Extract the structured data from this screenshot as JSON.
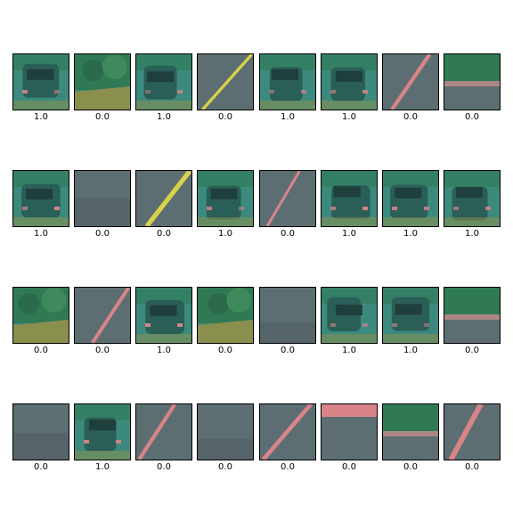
{
  "palette": {
    "teal": "#3c8a7e",
    "teal_dark": "#2a5f57",
    "slate": "#5d6e72",
    "olive": "#8a8f4e",
    "pink": "#d98488",
    "yellow": "#d6d24a",
    "green": "#2f7a55"
  },
  "thumbnails": [
    {
      "label": "1.0",
      "scene": "car"
    },
    {
      "label": "0.0",
      "scene": "vegetation"
    },
    {
      "label": "1.0",
      "scene": "car"
    },
    {
      "label": "0.0",
      "scene": "road-line"
    },
    {
      "label": "1.0",
      "scene": "car"
    },
    {
      "label": "1.0",
      "scene": "car"
    },
    {
      "label": "0.0",
      "scene": "road-line"
    },
    {
      "label": "0.0",
      "scene": "guardrail"
    },
    {
      "label": "1.0",
      "scene": "car"
    },
    {
      "label": "0.0",
      "scene": "road"
    },
    {
      "label": "0.0",
      "scene": "road-line"
    },
    {
      "label": "1.0",
      "scene": "car"
    },
    {
      "label": "0.0",
      "scene": "road-line"
    },
    {
      "label": "1.0",
      "scene": "car"
    },
    {
      "label": "1.0",
      "scene": "car"
    },
    {
      "label": "1.0",
      "scene": "car"
    },
    {
      "label": "0.0",
      "scene": "vegetation"
    },
    {
      "label": "0.0",
      "scene": "road-line"
    },
    {
      "label": "1.0",
      "scene": "car"
    },
    {
      "label": "0.0",
      "scene": "vegetation"
    },
    {
      "label": "0.0",
      "scene": "road"
    },
    {
      "label": "1.0",
      "scene": "car"
    },
    {
      "label": "1.0",
      "scene": "car"
    },
    {
      "label": "0.0",
      "scene": "guardrail"
    },
    {
      "label": "0.0",
      "scene": "road"
    },
    {
      "label": "1.0",
      "scene": "car"
    },
    {
      "label": "0.0",
      "scene": "road-line"
    },
    {
      "label": "0.0",
      "scene": "road"
    },
    {
      "label": "0.0",
      "scene": "road-line"
    },
    {
      "label": "0.0",
      "scene": "sky"
    },
    {
      "label": "0.0",
      "scene": "guardrail"
    },
    {
      "label": "0.0",
      "scene": "road-line"
    }
  ]
}
